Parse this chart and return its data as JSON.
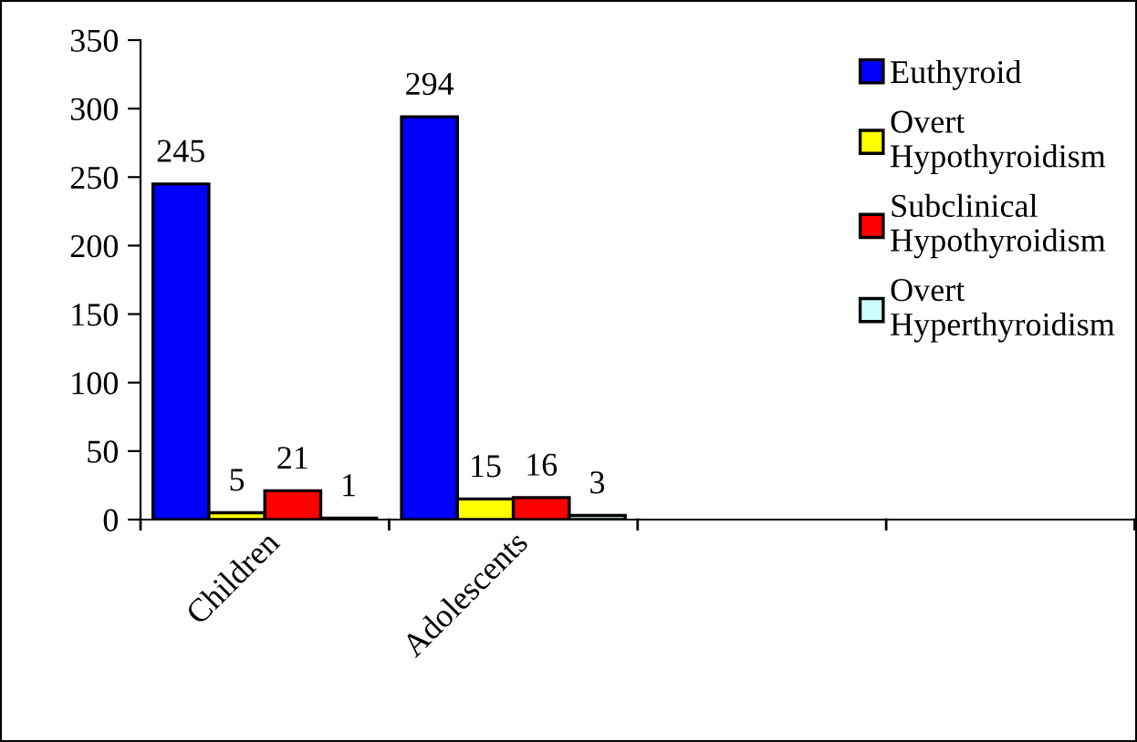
{
  "chart_data": {
    "type": "bar",
    "categories": [
      "Children",
      "Adolescents",
      null,
      null
    ],
    "series": [
      {
        "name": "Euthyroid",
        "color": "#0000ff",
        "values": [
          245,
          294,
          null,
          null
        ]
      },
      {
        "name": "Overt\nHypothyroidism",
        "color": "#ffff00",
        "values": [
          5,
          15,
          null,
          null
        ]
      },
      {
        "name": "Subclinical\nHypothyroidism",
        "color": "#ff0000",
        "values": [
          21,
          16,
          null,
          null
        ]
      },
      {
        "name": "Overt\nHyperthyroidism",
        "color": "#ccffff",
        "values": [
          1,
          3,
          null,
          null
        ]
      }
    ],
    "ylim": [
      0,
      350
    ],
    "yticks": [
      0,
      50,
      100,
      150,
      200,
      250,
      300,
      350
    ],
    "data_labels": true,
    "grid": false,
    "legend": "top right"
  }
}
